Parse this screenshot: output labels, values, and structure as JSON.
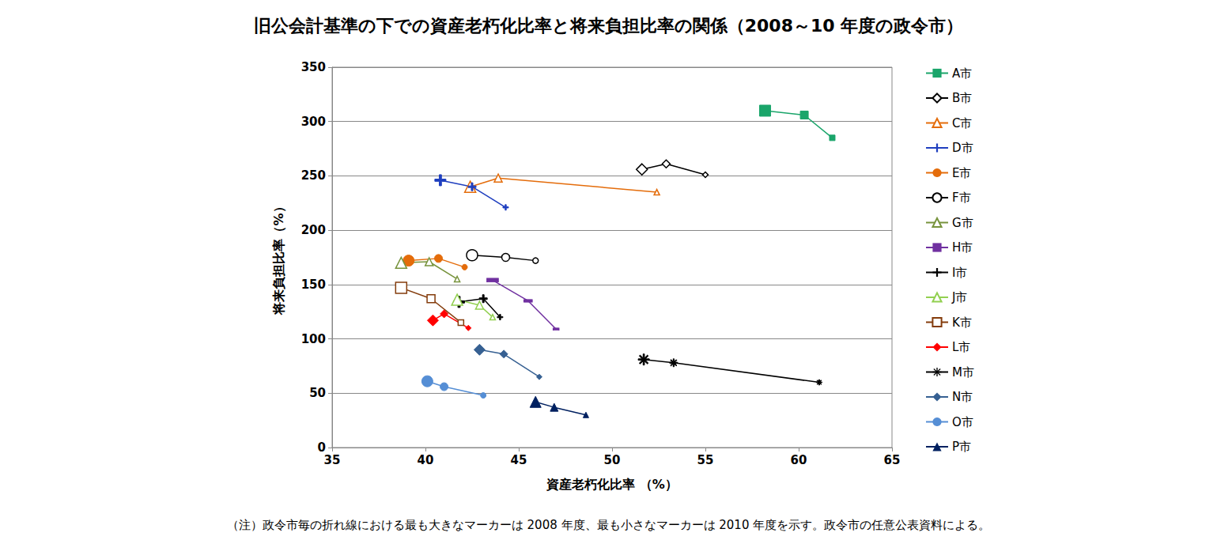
{
  "chart_data": {
    "type": "line",
    "title": "旧公会計基準の下での資産老朽化比率と将来負担比率の関係（2008～10 年度の政令市）",
    "x_label": "資産老朽化比率 （%）",
    "y_label": "将来負担比率（%）",
    "note": "（注）政令市毎の折れ線における最も大きなマーカーは 2008 年度、最も小さなマーカーは 2010 年度を示す。政令市の任意公表資料による。",
    "xlim": [
      35,
      65
    ],
    "xticks": [
      35,
      40,
      45,
      50,
      55,
      60,
      65
    ],
    "ylim": [
      0,
      350
    ],
    "yticks": [
      0,
      50,
      100,
      150,
      200,
      250,
      300,
      350
    ],
    "grid": true,
    "legend": "right",
    "series": [
      {
        "name": "A市",
        "color": "#1aa56a",
        "marker": "square",
        "x": [
          58.2,
          60.3,
          61.8
        ],
        "values": [
          310,
          306,
          285
        ]
      },
      {
        "name": "B市",
        "color": "#000000",
        "marker": "diamond_open",
        "x": [
          51.6,
          52.9,
          55.0
        ],
        "values": [
          256,
          261,
          251
        ]
      },
      {
        "name": "C市",
        "color": "#e46c0a",
        "marker": "triangle_open",
        "x": [
          42.4,
          43.9,
          52.4
        ],
        "values": [
          240,
          248,
          235
        ]
      },
      {
        "name": "D市",
        "color": "#1f3fbf",
        "marker": "plus",
        "x": [
          40.8,
          42.5,
          44.3
        ],
        "values": [
          246,
          240,
          221
        ]
      },
      {
        "name": "E市",
        "color": "#e46c0a",
        "marker": "circle",
        "x": [
          39.1,
          40.7,
          42.1
        ],
        "values": [
          172,
          174,
          166
        ]
      },
      {
        "name": "F市",
        "color": "#000000",
        "marker": "circle_open",
        "x": [
          42.5,
          44.3,
          45.9
        ],
        "values": [
          177,
          175,
          172
        ]
      },
      {
        "name": "G市",
        "color": "#77933c",
        "marker": "triangle_open",
        "x": [
          38.7,
          40.2,
          41.7
        ],
        "values": [
          170,
          171,
          155
        ]
      },
      {
        "name": "H市",
        "color": "#7030a0",
        "marker": "dash",
        "x": [
          43.6,
          45.5,
          47.0
        ],
        "values": [
          154,
          135,
          109
        ]
      },
      {
        "name": "I市",
        "color": "#000000",
        "marker": "plus",
        "x": [
          41.8,
          43.1,
          44.0
        ],
        "values": [
          134,
          137,
          120
        ]
      },
      {
        "name": "J市",
        "color": "#92d050",
        "marker": "triangle_open",
        "x": [
          41.7,
          42.9,
          43.6
        ],
        "values": [
          136,
          131,
          120
        ]
      },
      {
        "name": "K市",
        "color": "#843c0c",
        "marker": "square_open",
        "x": [
          38.7,
          40.3,
          41.9
        ],
        "values": [
          147,
          137,
          115
        ]
      },
      {
        "name": "L市",
        "color": "#ff0000",
        "marker": "diamond",
        "x": [
          40.4,
          41.0,
          42.3
        ],
        "values": [
          117,
          123,
          110
        ]
      },
      {
        "name": "M市",
        "color": "#000000",
        "marker": "star",
        "x": [
          51.7,
          53.3,
          61.1
        ],
        "values": [
          81,
          78,
          60
        ]
      },
      {
        "name": "N市",
        "color": "#366092",
        "marker": "diamond",
        "x": [
          42.9,
          44.2,
          46.1
        ],
        "values": [
          90,
          86,
          65
        ]
      },
      {
        "name": "O市",
        "color": "#558ed5",
        "marker": "circle",
        "x": [
          40.1,
          41.0,
          43.1
        ],
        "values": [
          61,
          56,
          48
        ]
      },
      {
        "name": "P市",
        "color": "#002060",
        "marker": "triangle",
        "x": [
          45.9,
          46.9,
          48.6
        ],
        "values": [
          42,
          37,
          30
        ]
      }
    ]
  }
}
